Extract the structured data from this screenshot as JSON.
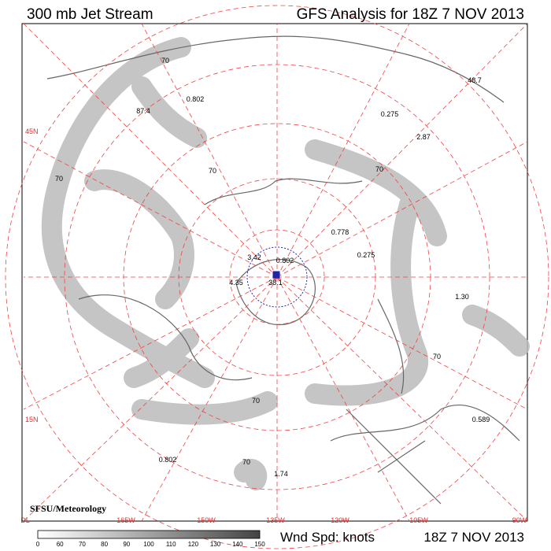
{
  "header": {
    "left": "300 mb Jet Stream",
    "right": "GFS Analysis for 18Z 7 NOV 2013"
  },
  "map": {
    "lat_labels": [
      "45N",
      "15N"
    ],
    "lon_labels": [
      "DL",
      "165W",
      "150W",
      "135W",
      "120W",
      "105W",
      "90W"
    ],
    "point_labels": [
      "70",
      "87.4",
      "0.802",
      "48.7",
      "0.275",
      "2.87",
      "70",
      "3.42",
      "0.802",
      "38.1",
      "4.35",
      "0.778",
      "0.275",
      "1.30",
      "0.589",
      "0.802",
      "1.74",
      "70",
      "70",
      "70",
      "70",
      "70"
    ],
    "credit": "SFSU/Meteorology"
  },
  "legend": {
    "ticks": [
      "0",
      "60",
      "70",
      "80",
      "90",
      "100",
      "110",
      "120",
      "130",
      "140",
      "150"
    ],
    "units": "Wnd Spd: knots",
    "date": "18Z 7 NOV 2013"
  }
}
